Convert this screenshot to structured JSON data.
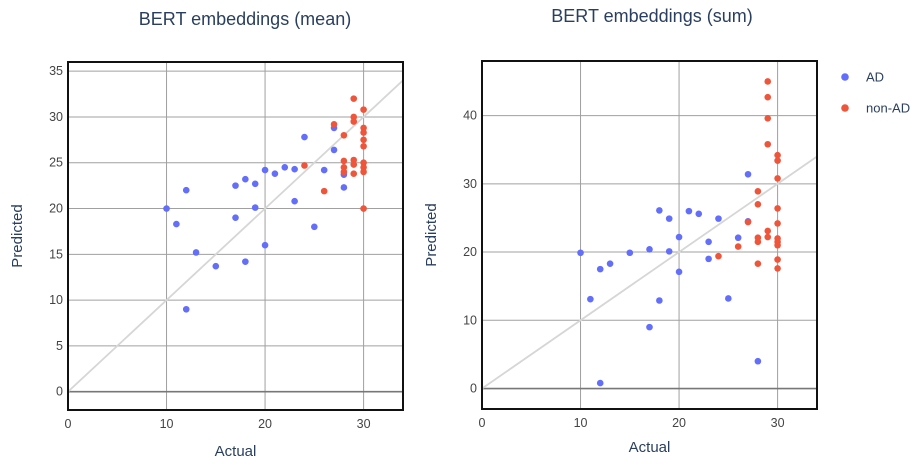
{
  "chart_data": [
    {
      "type": "scatter",
      "title": "BERT embeddings (mean)",
      "xlabel": "Actual",
      "ylabel": "Predicted",
      "xlim": [
        0,
        34
      ],
      "ylim": [
        -2,
        36
      ],
      "xticks": [
        0,
        10,
        20,
        30
      ],
      "yticks": [
        0,
        5,
        10,
        15,
        20,
        25,
        30,
        35
      ],
      "grid": true,
      "reference_line": "y = x",
      "series": [
        {
          "color": "#636efa",
          "points": [
            [
              10,
              20
            ],
            [
              11,
              18.3
            ],
            [
              12,
              22
            ],
            [
              12,
              9
            ],
            [
              13,
              15.2
            ],
            [
              15,
              13.7
            ],
            [
              17,
              22.5
            ],
            [
              17,
              19
            ],
            [
              18,
              23.2
            ],
            [
              18,
              14.2
            ],
            [
              19,
              22.7
            ],
            [
              19,
              20.1
            ],
            [
              20,
              24.2
            ],
            [
              20,
              16
            ],
            [
              21,
              23.8
            ],
            [
              22,
              24.5
            ],
            [
              23,
              24.3
            ],
            [
              23,
              20.8
            ],
            [
              24,
              27.8
            ],
            [
              25,
              18
            ],
            [
              26,
              24.2
            ],
            [
              27,
              26.4
            ],
            [
              27,
              28.8
            ],
            [
              28,
              22.3
            ],
            [
              28,
              23.7
            ]
          ]
        },
        {
          "color": "#ef553b",
          "points": [
            [
              24,
              24.7
            ],
            [
              26,
              21.9
            ],
            [
              27,
              29.2
            ],
            [
              28,
              25.2
            ],
            [
              28,
              24.5
            ],
            [
              28,
              24
            ],
            [
              28,
              28
            ],
            [
              29,
              32
            ],
            [
              29,
              30
            ],
            [
              29,
              29.5
            ],
            [
              29,
              25.3
            ],
            [
              29,
              23.8
            ],
            [
              29,
              24.8
            ],
            [
              30,
              30.8
            ],
            [
              30,
              28.8
            ],
            [
              30,
              28.3
            ],
            [
              30,
              27.5
            ],
            [
              30,
              26.8
            ],
            [
              30,
              25
            ],
            [
              30,
              24.5
            ],
            [
              30,
              24
            ],
            [
              30,
              20
            ]
          ]
        }
      ]
    },
    {
      "type": "scatter",
      "title": "BERT embeddings (sum)",
      "xlabel": "Actual",
      "ylabel": "Predicted",
      "xlim": [
        0,
        34
      ],
      "ylim": [
        -3,
        48
      ],
      "xticks": [
        0,
        10,
        20,
        30
      ],
      "yticks": [
        0,
        10,
        20,
        30,
        40
      ],
      "grid": true,
      "reference_line": "y = x",
      "legend_position": "right",
      "series": [
        {
          "name": "AD",
          "color": "#636efa",
          "points": [
            [
              10,
              19.9
            ],
            [
              11,
              13.1
            ],
            [
              12,
              17.5
            ],
            [
              12,
              0.8
            ],
            [
              13,
              18.3
            ],
            [
              15,
              19.9
            ],
            [
              17,
              20.4
            ],
            [
              17,
              9
            ],
            [
              18,
              26.1
            ],
            [
              18,
              12.9
            ],
            [
              19,
              24.9
            ],
            [
              19,
              20.1
            ],
            [
              20,
              22.2
            ],
            [
              20,
              17.1
            ],
            [
              21,
              26
            ],
            [
              22,
              25.6
            ],
            [
              23,
              21.5
            ],
            [
              23,
              19
            ],
            [
              24,
              24.9
            ],
            [
              25,
              13.2
            ],
            [
              26,
              22.1
            ],
            [
              27,
              31.4
            ],
            [
              27,
              24.5
            ],
            [
              28,
              4
            ]
          ]
        },
        {
          "name": "non-AD",
          "color": "#ef553b",
          "points": [
            [
              24,
              19.4
            ],
            [
              26,
              20.8
            ],
            [
              27,
              24.4
            ],
            [
              28,
              28.9
            ],
            [
              28,
              27
            ],
            [
              28,
              22.1
            ],
            [
              28,
              21.5
            ],
            [
              28,
              18.3
            ],
            [
              29,
              45
            ],
            [
              29,
              42.7
            ],
            [
              29,
              39.6
            ],
            [
              29,
              35.8
            ],
            [
              29,
              23.1
            ],
            [
              29,
              22.2
            ],
            [
              30,
              34.2
            ],
            [
              30,
              33.4
            ],
            [
              30,
              30.8
            ],
            [
              30,
              26.4
            ],
            [
              30,
              24.2
            ],
            [
              30,
              22
            ],
            [
              30,
              21.5
            ],
            [
              30,
              21
            ],
            [
              30,
              18.9
            ],
            [
              30,
              17.6
            ]
          ]
        }
      ]
    }
  ]
}
